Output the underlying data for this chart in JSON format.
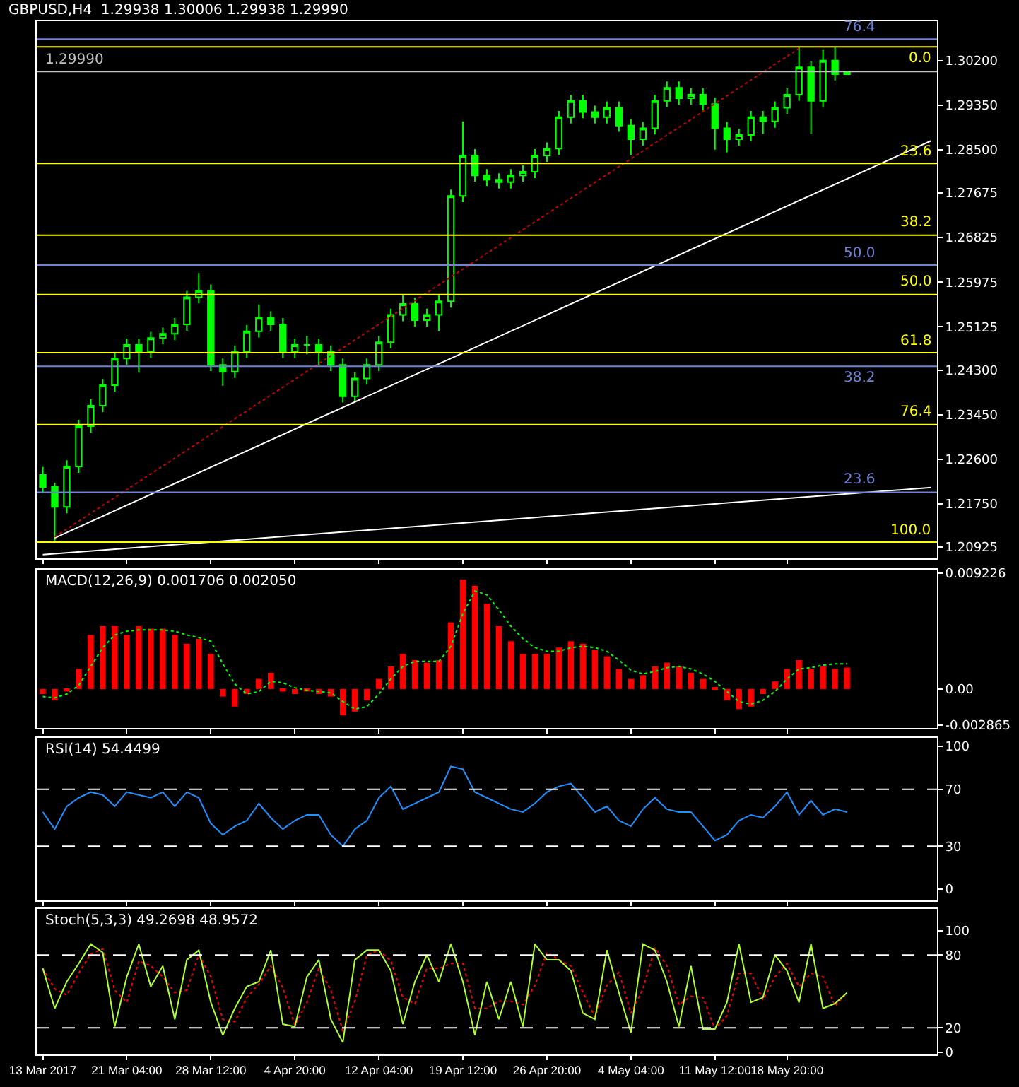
{
  "chart_data": [
    {
      "type": "candlestick",
      "title": "GBPUSD,H4  1.29938 1.30006 1.29938 1.29990",
      "tick_labels": "y",
      "color": "#00ff00",
      "ohlc": [
        [
          1.223,
          1.2245,
          1.2195,
          1.2207
        ],
        [
          1.2207,
          1.2215,
          1.2105,
          1.2169
        ],
        [
          1.2169,
          1.2258,
          1.2157,
          1.2246
        ],
        [
          1.2246,
          1.2335,
          1.2234,
          1.2323
        ],
        [
          1.2323,
          1.2374,
          1.2311,
          1.2362
        ],
        [
          1.2362,
          1.2413,
          1.235,
          1.2401
        ],
        [
          1.2401,
          1.2464,
          1.2389,
          1.2452
        ],
        [
          1.2452,
          1.249,
          1.244,
          1.2478
        ],
        [
          1.2478,
          1.249,
          1.2425,
          1.2465
        ],
        [
          1.2465,
          1.2503,
          1.2453,
          1.2491
        ],
        [
          1.2491,
          1.2511,
          1.2479,
          1.2499
        ],
        [
          1.2499,
          1.2529,
          1.2487,
          1.2517
        ],
        [
          1.2517,
          1.2581,
          1.2505,
          1.2569
        ],
        [
          1.2569,
          1.2615,
          1.2557,
          1.2581
        ],
        [
          1.2581,
          1.2593,
          1.2428,
          1.244
        ],
        [
          1.244,
          1.2452,
          1.24,
          1.2427
        ],
        [
          1.2427,
          1.2477,
          1.2415,
          1.2465
        ],
        [
          1.2465,
          1.2516,
          1.2453,
          1.2504
        ],
        [
          1.2504,
          1.2555,
          1.2492,
          1.253
        ],
        [
          1.253,
          1.2542,
          1.2505,
          1.2517
        ],
        [
          1.2517,
          1.2529,
          1.2453,
          1.2465
        ],
        [
          1.2465,
          1.249,
          1.2453,
          1.2478
        ],
        [
          1.2478,
          1.2495,
          1.246,
          1.2478
        ],
        [
          1.2478,
          1.249,
          1.244,
          1.2465
        ],
        [
          1.2465,
          1.2477,
          1.2428,
          1.244
        ],
        [
          1.244,
          1.2452,
          1.2368,
          1.238
        ],
        [
          1.238,
          1.2426,
          1.2368,
          1.2414
        ],
        [
          1.2414,
          1.2452,
          1.2402,
          1.244
        ],
        [
          1.244,
          1.2495,
          1.2428,
          1.2483
        ],
        [
          1.2483,
          1.2547,
          1.2471,
          1.2535
        ],
        [
          1.2535,
          1.2575,
          1.2523,
          1.2556
        ],
        [
          1.2556,
          1.2568,
          1.2513,
          1.2525
        ],
        [
          1.2525,
          1.2547,
          1.2513,
          1.2535
        ],
        [
          1.2535,
          1.2573,
          1.2505,
          1.2561
        ],
        [
          1.2561,
          1.2774,
          1.2549,
          1.2762
        ],
        [
          1.2762,
          1.2904,
          1.275,
          1.2839
        ],
        [
          1.2839,
          1.2851,
          1.2789,
          1.2801
        ],
        [
          1.2801,
          1.2813,
          1.2781,
          1.2793
        ],
        [
          1.2793,
          1.2805,
          1.2776,
          1.2788
        ],
        [
          1.2788,
          1.2813,
          1.2776,
          1.2801
        ],
        [
          1.2801,
          1.282,
          1.2789,
          1.2808
        ],
        [
          1.2808,
          1.2851,
          1.2796,
          1.2839
        ],
        [
          1.2839,
          1.2864,
          1.2827,
          1.2852
        ],
        [
          1.2852,
          1.2924,
          1.284,
          1.2912
        ],
        [
          1.2912,
          1.2955,
          1.29,
          1.2943
        ],
        [
          1.2943,
          1.2955,
          1.291,
          1.2922
        ],
        [
          1.2922,
          1.2934,
          1.29,
          1.2912
        ],
        [
          1.2912,
          1.2942,
          1.29,
          1.293
        ],
        [
          1.293,
          1.2942,
          1.2884,
          1.2896
        ],
        [
          1.2896,
          1.2908,
          1.284,
          1.287
        ],
        [
          1.287,
          1.2903,
          1.2858,
          1.2891
        ],
        [
          1.2891,
          1.2955,
          1.2879,
          1.2943
        ],
        [
          1.2943,
          1.298,
          1.2931,
          1.2968
        ],
        [
          1.2968,
          1.298,
          1.2936,
          1.2948
        ],
        [
          1.2948,
          1.2967,
          1.2936,
          1.2955
        ],
        [
          1.2955,
          1.2967,
          1.2925,
          1.2937
        ],
        [
          1.2937,
          1.2949,
          1.285,
          1.2891
        ],
        [
          1.2891,
          1.2903,
          1.2845,
          1.287
        ],
        [
          1.287,
          1.289,
          1.2858,
          1.2878
        ],
        [
          1.2878,
          1.2924,
          1.2866,
          1.2912
        ],
        [
          1.2912,
          1.2924,
          1.288,
          1.2904
        ],
        [
          1.2904,
          1.2942,
          1.2892,
          1.293
        ],
        [
          1.293,
          1.2967,
          1.2918,
          1.2955
        ],
        [
          1.2955,
          1.3045,
          1.2943,
          1.3007
        ],
        [
          1.3007,
          1.3019,
          1.288,
          1.2943
        ],
        [
          1.2943,
          1.304,
          1.2931,
          1.302
        ],
        [
          1.302,
          1.3045,
          1.2982,
          1.2994
        ],
        [
          1.29938,
          1.30006,
          1.29938,
          1.2999
        ],
        null,
        null,
        null,
        null,
        null,
        null,
        null
      ],
      "series": [
        {
          "type": "line",
          "color": "#ffffff",
          "values": [
            null,
            1.211,
            null,
            null,
            null,
            null,
            null,
            null,
            null,
            null,
            null,
            null,
            null,
            null,
            null,
            null,
            null,
            null,
            null,
            null,
            null,
            null,
            null,
            null,
            null,
            null,
            null,
            null,
            null,
            null,
            null,
            null,
            null,
            null,
            null,
            null,
            null,
            null,
            null,
            null,
            null,
            null,
            null,
            null,
            null,
            null,
            null,
            null,
            null,
            null,
            null,
            null,
            null,
            null,
            null,
            null,
            null,
            null,
            null,
            null,
            null,
            null,
            null,
            null,
            null,
            null,
            null,
            null,
            null,
            null,
            null,
            null,
            null,
            null,
            1.2867
          ]
        },
        {
          "type": "line",
          "color": "#ffffff",
          "values": [
            1.2078,
            null,
            null,
            null,
            null,
            null,
            null,
            null,
            null,
            null,
            null,
            null,
            null,
            null,
            null,
            null,
            null,
            null,
            null,
            null,
            null,
            null,
            null,
            null,
            null,
            null,
            null,
            null,
            null,
            null,
            null,
            null,
            null,
            null,
            null,
            null,
            null,
            null,
            null,
            null,
            null,
            null,
            null,
            null,
            null,
            null,
            null,
            null,
            null,
            null,
            null,
            null,
            null,
            null,
            null,
            null,
            null,
            null,
            null,
            null,
            null,
            null,
            null,
            null,
            null,
            null,
            null,
            null,
            null,
            null,
            null,
            null,
            null,
            null,
            1.2206
          ]
        },
        {
          "type": "line",
          "color": "#cc0000",
          "line_style": "dotted",
          "values": [
            null,
            1.2112,
            null,
            null,
            null,
            null,
            null,
            null,
            null,
            null,
            null,
            null,
            null,
            null,
            null,
            null,
            null,
            null,
            null,
            null,
            null,
            null,
            null,
            null,
            null,
            null,
            null,
            null,
            null,
            null,
            null,
            null,
            null,
            null,
            null,
            null,
            null,
            null,
            null,
            null,
            null,
            null,
            null,
            null,
            null,
            null,
            null,
            null,
            null,
            null,
            null,
            null,
            null,
            null,
            null,
            null,
            null,
            null,
            null,
            null,
            null,
            null,
            null,
            1.3043,
            null,
            null,
            null,
            null,
            null,
            null,
            null,
            null,
            null,
            null,
            null
          ]
        }
      ],
      "ylim": [
        1.2071,
        1.3095
      ],
      "yticks": [
        {
          "value": 1.302,
          "label": "1.30200"
        },
        {
          "value": 1.2935,
          "label": "1.29350"
        },
        {
          "value": 1.285,
          "label": "1.28500"
        },
        {
          "value": 1.27675,
          "label": "1.27675"
        },
        {
          "value": 1.26825,
          "label": "1.26825"
        },
        {
          "value": 1.25975,
          "label": "1.25975"
        },
        {
          "value": 1.25125,
          "label": "1.25125"
        },
        {
          "value": 1.243,
          "label": "1.24300"
        },
        {
          "value": 1.2345,
          "label": "1.23450"
        },
        {
          "value": 1.226,
          "label": "1.22600"
        },
        {
          "value": 1.2175,
          "label": "1.21750"
        },
        {
          "value": 1.20925,
          "label": "1.20925"
        }
      ],
      "ref_lines": [
        {
          "axis": "y",
          "value": 1.3046,
          "color": "#ffff00"
        },
        {
          "axis": "y",
          "value": 1.2824,
          "color": "#ffff00"
        },
        {
          "axis": "y",
          "value": 1.2687,
          "color": "#ffff00"
        },
        {
          "axis": "y",
          "value": 1.2574,
          "color": "#ffff00"
        },
        {
          "axis": "y",
          "value": 1.2463,
          "color": "#ffff00"
        },
        {
          "axis": "y",
          "value": 1.2326,
          "color": "#ffff00"
        },
        {
          "axis": "y",
          "value": 1.2102,
          "color": "#ffff00"
        },
        {
          "axis": "y",
          "value": 1.3061,
          "color": "#6f83d6"
        },
        {
          "axis": "y",
          "value": 1.263,
          "color": "#6f83d6"
        },
        {
          "axis": "y",
          "value": 1.2437,
          "color": "#6f83d6"
        },
        {
          "axis": "y",
          "value": 1.2197,
          "color": "#6f83d6"
        },
        {
          "axis": "y",
          "value": 1.2999,
          "label": "1.29990",
          "color": "#c0c0c0"
        }
      ],
      "annotations": [
        {
          "text": "0.0",
          "y": 1.3046
        },
        {
          "text": "23.6",
          "y": 1.2824
        },
        {
          "text": "38.2",
          "y": 1.2687
        },
        {
          "text": "50.0",
          "y": 1.2574
        },
        {
          "text": "61.8",
          "y": 1.2463
        },
        {
          "text": "76.4",
          "y": 1.2326
        },
        {
          "text": "100.0",
          "y": 1.2102
        },
        {
          "text": "76.4",
          "y": 1.3061
        },
        {
          "text": "50.0",
          "y": 1.263
        },
        {
          "text": "38.2",
          "y": 1.2437
        },
        {
          "text": "23.6",
          "y": 1.2197
        }
      ]
    },
    {
      "type": "bar",
      "title": "MACD(12,26,9) 0.001706 0.002050",
      "tick_labels": "y",
      "series": [
        {
          "type": "bar",
          "color": "#ff0000",
          "values": [
            -0.0004,
            -0.0009,
            -0.0002,
            0.0016,
            0.0043,
            0.005,
            0.005,
            0.0043,
            0.005,
            0.0048,
            0.0048,
            0.0043,
            0.0036,
            0.004,
            0.0028,
            -0.0006,
            -0.0014,
            -0.0004,
            0.0008,
            0.0013,
            -0.0002,
            -0.0004,
            -0.0002,
            -0.0004,
            -0.0006,
            -0.0021,
            -0.0018,
            -0.0009,
            0.0008,
            0.0018,
            0.0028,
            0.0023,
            0.0021,
            0.0023,
            0.0053,
            0.0087,
            0.0082,
            0.0068,
            0.005,
            0.0038,
            0.0028,
            0.0028,
            0.0028,
            0.0033,
            0.0038,
            0.0036,
            0.0031,
            0.0026,
            0.0016,
            0.0008,
            0.0011,
            0.0018,
            0.0021,
            0.0018,
            0.0013,
            0.0008,
            0.0001,
            -0.0009,
            -0.0016,
            -0.0014,
            -0.0004,
            0.0006,
            0.0016,
            0.0023,
            0.0016,
            0.0018,
            0.0016,
            0.0017,
            null,
            null,
            null,
            null,
            null,
            null,
            null
          ]
        },
        {
          "type": "line",
          "color": "#00ff00",
          "line_style": "dotted",
          "values": [
            -0.0006,
            -0.0007,
            -0.0004,
            0.0003,
            0.0018,
            0.0033,
            0.0043,
            0.0046,
            0.0047,
            0.0047,
            0.0047,
            0.0046,
            0.0043,
            0.0041,
            0.0038,
            0.002,
            0.0004,
            -0.0004,
            -0.0002,
            0.0006,
            0.0005,
            0.0001,
            -0.0001,
            -0.0002,
            -0.0003,
            -0.001,
            -0.0016,
            -0.0014,
            -0.0004,
            0.0008,
            0.0018,
            0.0022,
            0.0022,
            0.0022,
            0.0034,
            0.006,
            0.0078,
            0.0075,
            0.0063,
            0.005,
            0.004,
            0.0033,
            0.003,
            0.003,
            0.0033,
            0.0034,
            0.0033,
            0.003,
            0.0023,
            0.0015,
            0.0012,
            0.0014,
            0.0017,
            0.0018,
            0.0016,
            0.0012,
            0.0006,
            -0.0002,
            -0.001,
            -0.0012,
            -0.0009,
            -0.0002,
            0.0008,
            0.0016,
            0.0017,
            0.0019,
            0.002,
            0.002,
            null,
            null,
            null,
            null,
            null,
            null,
            null
          ]
        }
      ],
      "ylim": [
        -0.0031,
        0.0095
      ],
      "yticks": [
        {
          "value": 0.009226,
          "label": "0.009226"
        },
        {
          "value": 0,
          "label": "0.00"
        },
        {
          "value": -0.002865,
          "label": "-0.002865"
        }
      ]
    },
    {
      "type": "line",
      "title": "RSI(14) 54.4499",
      "tick_labels": "y",
      "series": [
        {
          "color": "#1e90ff",
          "values": [
            54,
            42,
            58,
            64,
            68,
            66,
            58,
            68,
            66,
            64,
            68,
            58,
            68,
            64,
            46,
            38,
            44,
            48,
            60,
            50,
            42,
            48,
            52,
            52,
            38,
            30,
            42,
            48,
            64,
            72,
            56,
            60,
            64,
            68,
            86,
            84,
            68,
            64,
            60,
            56,
            54,
            60,
            68,
            72,
            74,
            64,
            54,
            58,
            48,
            44,
            56,
            64,
            56,
            54,
            54,
            44,
            34,
            38,
            48,
            52,
            50,
            58,
            68,
            52,
            62,
            52,
            56,
            54,
            null,
            null,
            null,
            null,
            null,
            null,
            null
          ]
        }
      ],
      "ylim": [
        -8,
        106
      ],
      "yticks": [
        100,
        70,
        30,
        0
      ],
      "ref_lines": [
        {
          "axis": "y",
          "value": 70,
          "color": "#ffffff",
          "line_style": "dashed"
        },
        {
          "axis": "y",
          "value": 30,
          "color": "#ffffff",
          "line_style": "dashed"
        }
      ]
    },
    {
      "type": "line",
      "title": "Stoch(5,3,3) 49.2698 48.9572",
      "categories": [
        "13 Mar 2017",
        null,
        null,
        null,
        null,
        null,
        null,
        "21 Mar 04:00",
        null,
        null,
        null,
        null,
        null,
        null,
        "28 Mar 12:00",
        null,
        null,
        null,
        null,
        null,
        null,
        "4 Apr 20:00",
        null,
        null,
        null,
        null,
        null,
        null,
        "12 Apr 04:00",
        null,
        null,
        null,
        null,
        null,
        null,
        "19 Apr 12:00",
        null,
        null,
        null,
        null,
        null,
        null,
        "26 Apr 20:00",
        null,
        null,
        null,
        null,
        null,
        null,
        "4 May 04:00",
        null,
        null,
        null,
        null,
        null,
        null,
        "11 May 12:00",
        null,
        null,
        null,
        null,
        null,
        "18 May 20:00",
        null,
        null,
        null,
        null,
        null,
        null,
        null,
        null,
        null,
        null,
        null,
        null
      ],
      "series": [
        {
          "color": "#ff0000",
          "line_style": "dotted",
          "values": [
            69,
            52,
            47,
            65,
            81,
            85,
            51,
            41,
            75,
            71,
            62,
            49,
            51,
            80,
            62,
            27,
            25,
            45,
            56,
            71,
            53,
            22,
            41,
            69,
            51,
            17,
            42,
            80,
            84,
            75,
            45,
            40,
            69,
            69,
            73,
            73,
            36,
            36,
            42,
            42,
            39,
            55,
            82,
            76,
            71,
            49,
            29,
            55,
            66,
            32,
            52,
            86,
            71,
            39,
            46,
            45,
            19,
            30,
            65,
            65,
            43,
            62,
            73,
            54,
            65,
            62,
            38,
            49,
            null,
            null,
            null,
            null,
            null,
            null,
            null
          ]
        },
        {
          "color": "#adff2f",
          "values": [
            69,
            36,
            58,
            73,
            89,
            82,
            21,
            62,
            89,
            54,
            71,
            27,
            76,
            84,
            41,
            14,
            36,
            54,
            58,
            84,
            23,
            21,
            62,
            76,
            27,
            8,
            76,
            84,
            84,
            67,
            23,
            58,
            80,
            58,
            89,
            58,
            14,
            58,
            27,
            58,
            21,
            89,
            76,
            76,
            67,
            32,
            27,
            84,
            49,
            16,
            89,
            84,
            58,
            21,
            71,
            19,
            19,
            41,
            89,
            41,
            45,
            80,
            67,
            41,
            89,
            36,
            40,
            49,
            null,
            null,
            null,
            null,
            null,
            null,
            null
          ]
        }
      ],
      "ylim": [
        -2,
        118
      ],
      "yticks": [
        100,
        80,
        20,
        0
      ],
      "ref_lines": [
        {
          "axis": "y",
          "value": 80,
          "color": "#ffffff",
          "line_style": "dashed"
        },
        {
          "axis": "y",
          "value": 20,
          "color": "#ffffff",
          "line_style": "dashed"
        }
      ]
    }
  ]
}
